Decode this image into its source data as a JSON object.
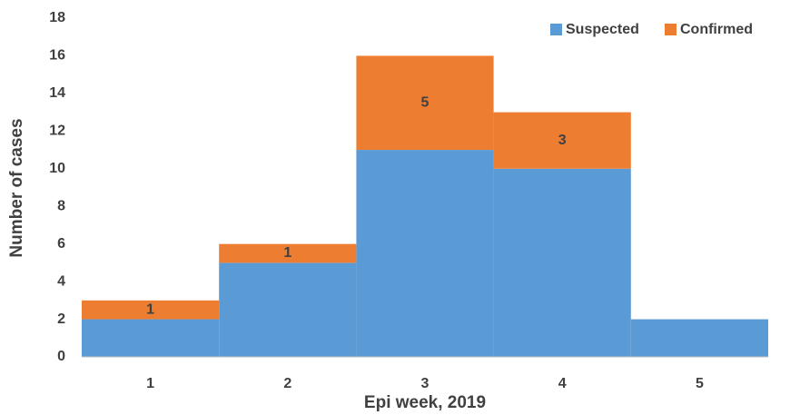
{
  "chart_data": {
    "type": "bar",
    "stacked": true,
    "x_label": "Epi week, 2019",
    "y_label": "Number of cases",
    "categories": [
      "1",
      "2",
      "3",
      "4",
      "5"
    ],
    "series": [
      {
        "name": "Suspected",
        "color": "#5b9bd5",
        "values": [
          2,
          5,
          11,
          10,
          2
        ]
      },
      {
        "name": "Confirmed",
        "color": "#ed7d31",
        "values": [
          1,
          1,
          5,
          3,
          0
        ]
      }
    ],
    "ylim": [
      0,
      18
    ],
    "yticks": [
      0,
      2,
      4,
      6,
      8,
      10,
      12,
      14,
      16,
      18
    ],
    "grid": false,
    "legend": "top-right"
  }
}
